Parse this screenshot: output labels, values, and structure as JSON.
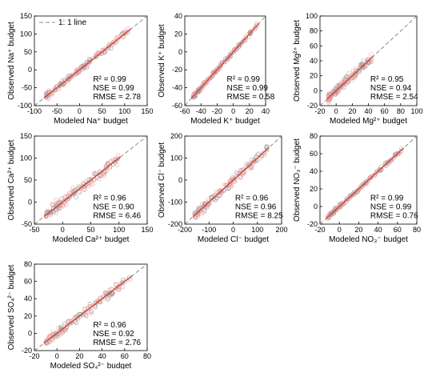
{
  "figure": {
    "legend_label": "1: 1 line",
    "colors": {
      "one_to_one_line": "#8c8c8c",
      "fit_line": "#c0392b",
      "points_pink": "#e8a1a1",
      "points_gray": "#9a9a9a",
      "axis": "#000000"
    }
  },
  "chart_data": [
    {
      "id": "na",
      "type": "scatter",
      "xlabel": "Modeled Na⁺ budget",
      "ylabel": "Observed Na⁺ budget",
      "xlim": [
        -100,
        150
      ],
      "ylim": [
        -100,
        150
      ],
      "xticks": [
        -100,
        -50,
        0,
        50,
        100,
        150
      ],
      "yticks": [
        -100,
        -50,
        0,
        50,
        100,
        150
      ],
      "stats": [
        "R² = 0.99",
        "NSE = 0.99",
        "RMSE = 2.78"
      ],
      "range": [
        -75,
        110
      ],
      "spread": 0.06,
      "seed": 11,
      "show_legend": true
    },
    {
      "id": "k",
      "type": "scatter",
      "xlabel": "Modeled K⁺ budget",
      "ylabel": "Observed K⁺ budget",
      "xlim": [
        -60,
        40
      ],
      "ylim": [
        -60,
        40
      ],
      "xticks": [
        -60,
        -40,
        -20,
        0,
        20,
        40
      ],
      "yticks": [
        -60,
        -40,
        -20,
        0,
        20,
        40
      ],
      "stats": [
        "R² = 0.99",
        "NSE = 0.99",
        "RMSE = 0.58"
      ],
      "range": [
        -50,
        30
      ],
      "spread": 0.04,
      "seed": 23,
      "show_legend": false
    },
    {
      "id": "mg",
      "type": "scatter",
      "xlabel": "Modeled Mg²⁺ budget",
      "ylabel": "Observed Mg²⁺ budget",
      "xlim": [
        -20,
        100
      ],
      "ylim": [
        -20,
        100
      ],
      "xticks": [
        -20,
        0,
        20,
        40,
        60,
        80,
        100
      ],
      "yticks": [
        -20,
        0,
        20,
        40,
        60,
        80,
        100
      ],
      "stats": [
        "R² = 0.95",
        "NSE = 0.94",
        "RMSE = 2.54"
      ],
      "range": [
        -10,
        45
      ],
      "spread": 0.14,
      "seed": 37,
      "show_legend": false
    },
    {
      "id": "ca",
      "type": "scatter",
      "xlabel": "Modeled Ca²⁺ budget",
      "ylabel": "Observed Ca²⁺ budget",
      "xlim": [
        -50,
        150
      ],
      "ylim": [
        -50,
        150
      ],
      "xticks": [
        -50,
        0,
        50,
        100,
        150
      ],
      "yticks": [
        -50,
        0,
        50,
        100,
        150
      ],
      "stats": [
        "R² = 0.96",
        "NSE = 0.90",
        "RMSE = 6.46"
      ],
      "range": [
        -30,
        100
      ],
      "spread": 0.13,
      "seed": 41,
      "show_legend": false
    },
    {
      "id": "cl",
      "type": "scatter",
      "xlabel": "Modeled Cl⁻ budget",
      "ylabel": "Observed Cl⁻ budget",
      "xlim": [
        -200,
        200
      ],
      "ylim": [
        -200,
        200
      ],
      "xticks": [
        -200,
        -100,
        0,
        100,
        200
      ],
      "yticks": [
        -200,
        -100,
        0,
        100,
        200
      ],
      "stats": [
        "R² = 0.96",
        "NSE = 0.96",
        "RMSE = 8.25"
      ],
      "range": [
        -160,
        140
      ],
      "spread": 0.1,
      "seed": 53,
      "show_legend": false
    },
    {
      "id": "no3",
      "type": "scatter",
      "xlabel": "Modeled NO₃⁻ budget",
      "ylabel": "Observed NO₃⁻ budget",
      "xlim": [
        -20,
        80
      ],
      "ylim": [
        -20,
        80
      ],
      "xticks": [
        -20,
        0,
        20,
        40,
        60,
        80
      ],
      "yticks": [
        -20,
        0,
        20,
        40,
        60,
        80
      ],
      "stats": [
        "R² = 0.99",
        "NSE = 0.99",
        "RMSE = 0.76"
      ],
      "range": [
        -12,
        65
      ],
      "spread": 0.04,
      "seed": 67,
      "show_legend": false
    },
    {
      "id": "so4",
      "type": "scatter",
      "xlabel": "Modeled SO₄²⁻ budget",
      "ylabel": "Observed SO₄²⁻ budget",
      "xlim": [
        -20,
        80
      ],
      "ylim": [
        -20,
        80
      ],
      "xticks": [
        -20,
        0,
        20,
        40,
        60,
        80
      ],
      "yticks": [
        -20,
        0,
        20,
        40,
        60,
        80
      ],
      "stats": [
        "R² = 0.96",
        "NSE = 0.92",
        "RMSE = 2.76"
      ],
      "range": [
        -10,
        65
      ],
      "spread": 0.1,
      "seed": 79,
      "show_legend": false
    }
  ]
}
